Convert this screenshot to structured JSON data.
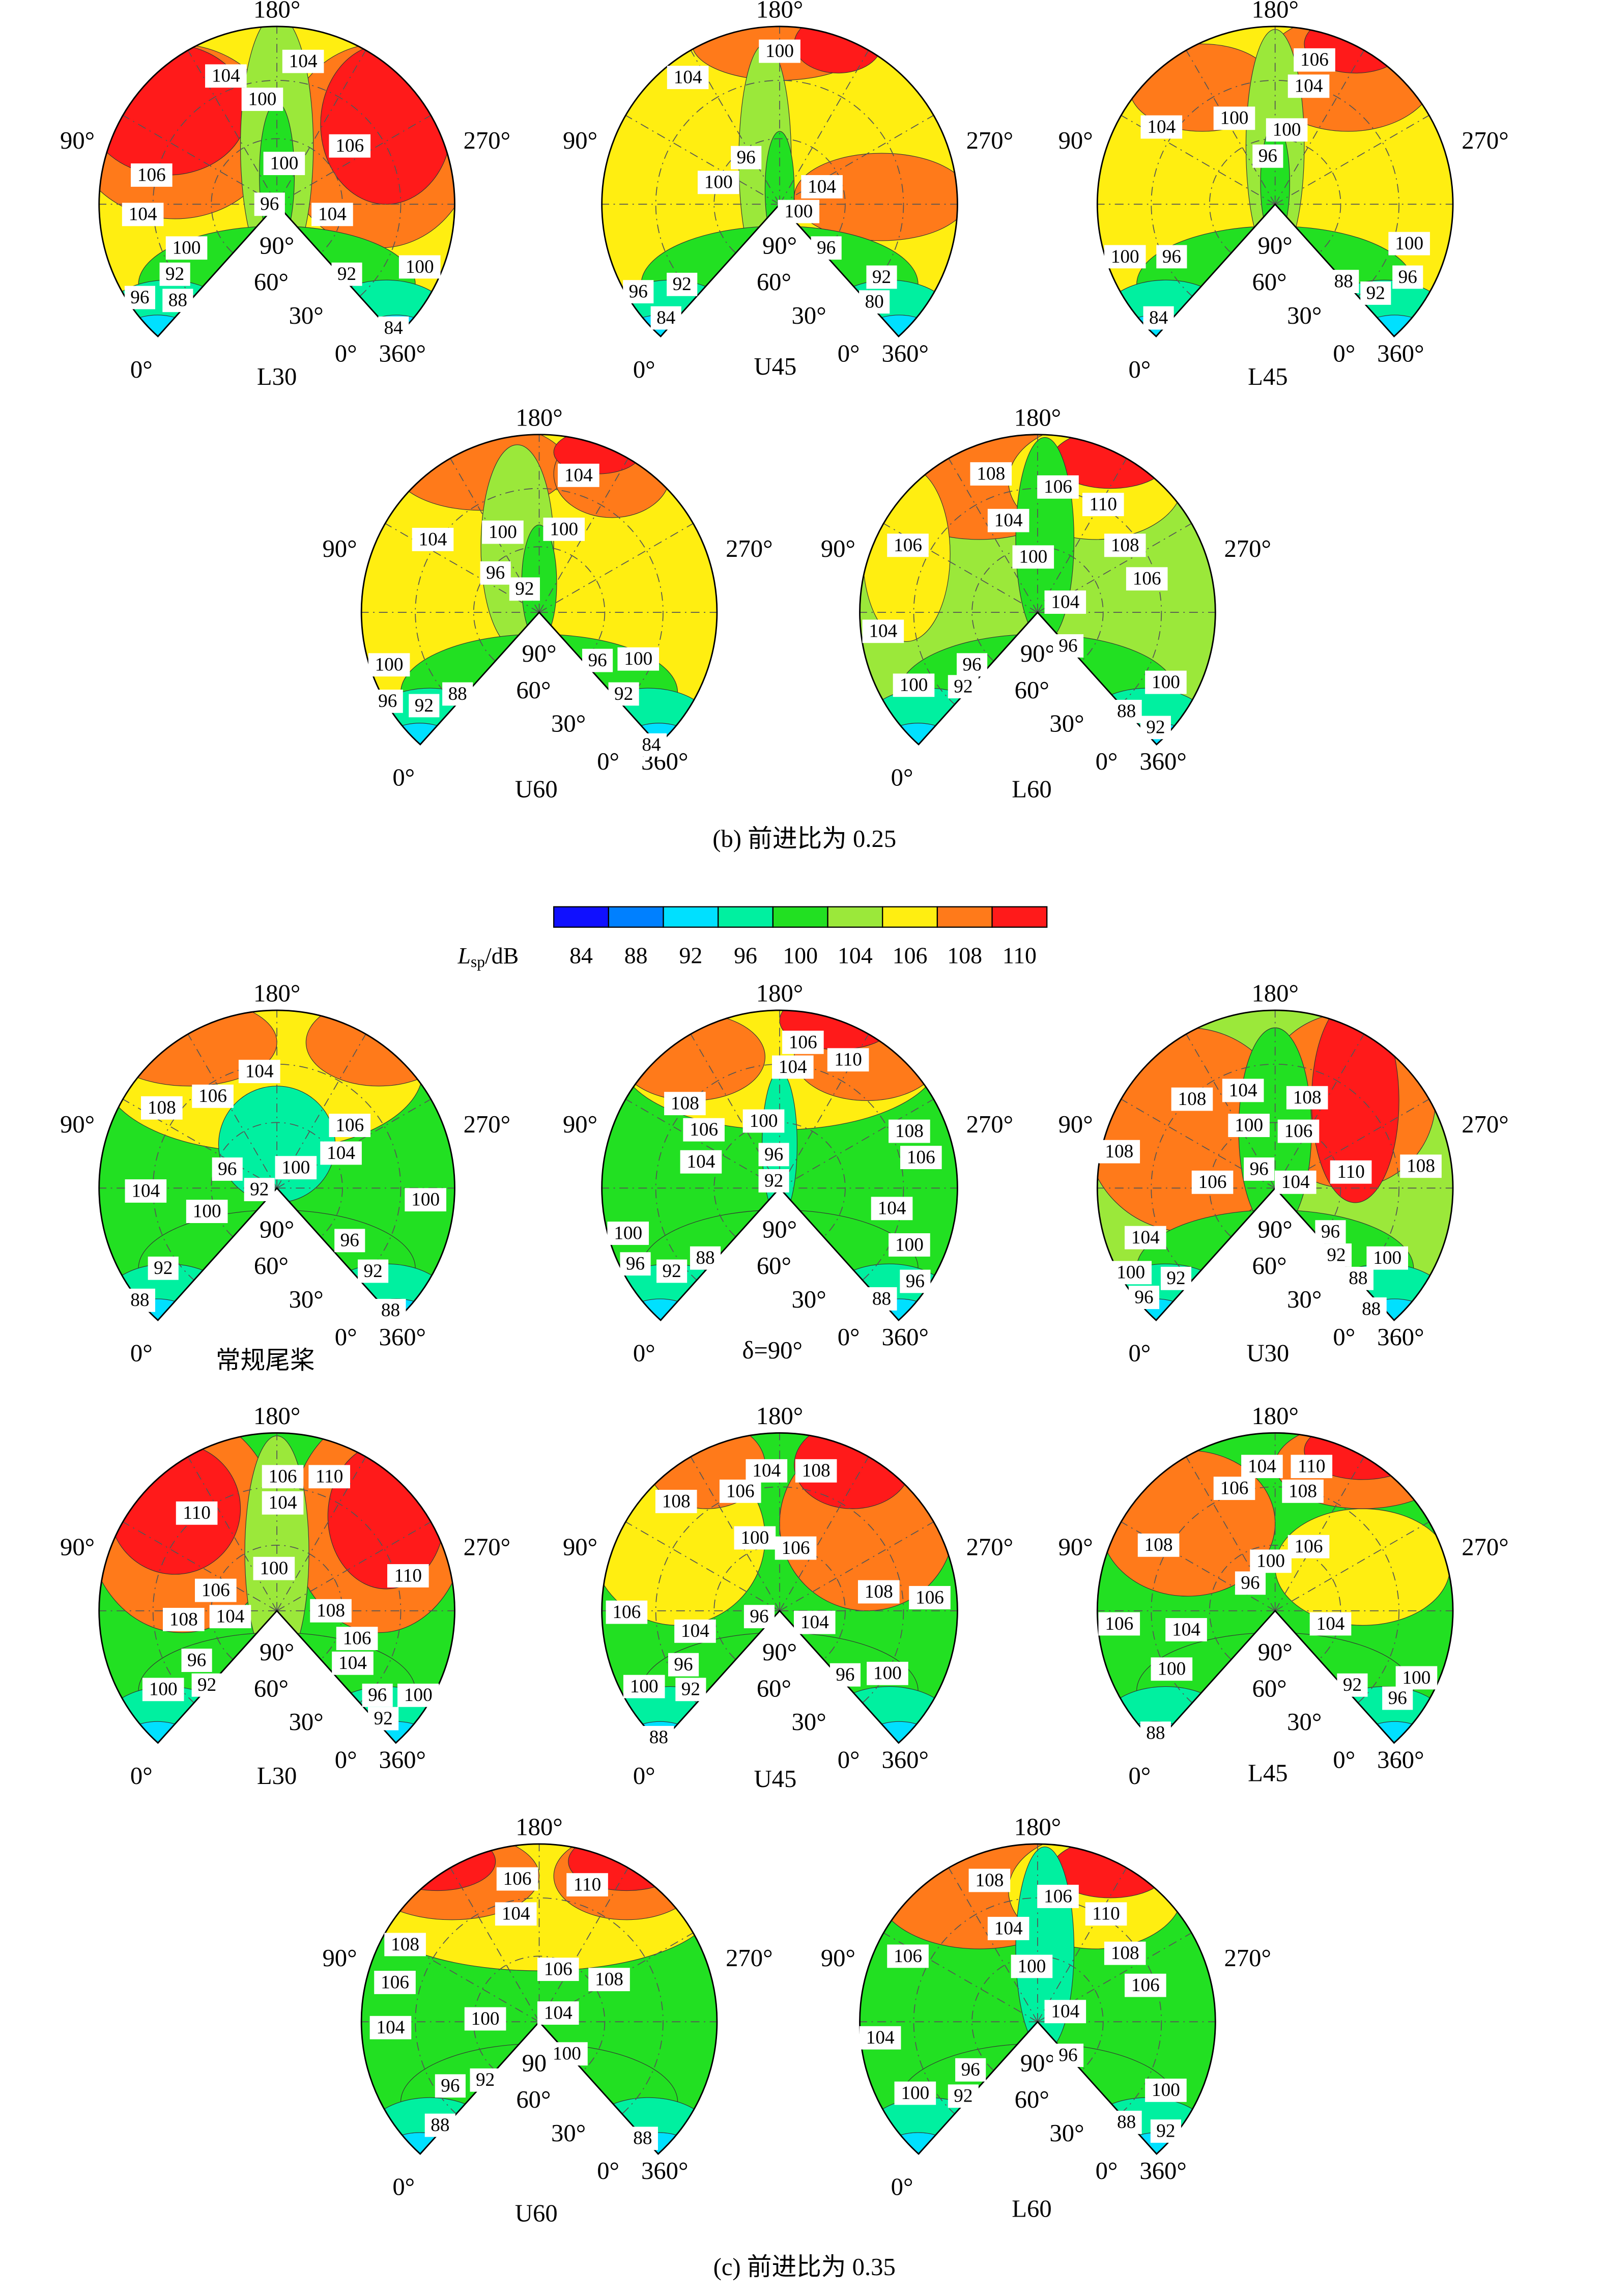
{
  "chart_data": {
    "type": "contour",
    "angle_labels": {
      "top": "180°",
      "left": "90°",
      "right": "270°",
      "inner_90": "90°",
      "inner_60": "60°",
      "inner_30": "30°",
      "zero_right": "0°",
      "end": "360°",
      "zero_left": "0°"
    },
    "colorbar": {
      "label_symbol": "L",
      "label_subscript": "sp",
      "label_unit": "/dB",
      "levels": [
        84,
        88,
        92,
        96,
        100,
        104,
        106,
        108,
        110
      ],
      "colors": [
        "#1010ff",
        "#0080ff",
        "#00e0ff",
        "#00f0a0",
        "#22e022",
        "#9be83a",
        "#ffee11",
        "#ff7a1a",
        "#ff1a1a"
      ]
    },
    "groups": [
      {
        "caption": "(b) 前进比为 0.25",
        "panels": [
          {
            "name": "L30",
            "contour_labels": [
              104,
              104,
              100,
              106,
              100,
              106,
              96,
              104,
              104,
              100,
              100,
              92,
              92,
              96,
              88,
              84
            ]
          },
          {
            "name": "U45",
            "contour_labels": [
              100,
              104,
              96,
              100,
              104,
              100,
              96,
              92,
              92,
              96,
              84,
              80
            ]
          },
          {
            "name": "L45",
            "contour_labels": [
              106,
              104,
              104,
              100,
              100,
              96,
              100,
              100,
              96,
              96,
              88,
              92,
              84
            ]
          },
          {
            "name": "U60",
            "contour_labels": [
              104,
              100,
              100,
              104,
              96,
              92,
              100,
              96,
              100,
              96,
              92,
              88,
              92,
              84
            ]
          },
          {
            "name": "L60",
            "contour_labels": [
              108,
              106,
              110,
              104,
              106,
              108,
              100,
              106,
              104,
              96,
              104,
              96,
              100,
              92,
              100,
              88,
              92
            ]
          }
        ]
      },
      {
        "caption": "(c) 前进比为 0.35",
        "panels": [
          {
            "name": "常规尾桨",
            "contour_labels": [
              104,
              106,
              108,
              106,
              104,
              96,
              100,
              92,
              104,
              100,
              100,
              96,
              92,
              92,
              88,
              88
            ]
          },
          {
            "name": "δ=90°",
            "contour_labels": [
              106,
              110,
              104,
              108,
              106,
              100,
              108,
              106,
              104,
              96,
              92,
              104,
              100,
              100,
              96,
              92,
              88,
              96,
              88
            ]
          },
          {
            "name": "U30",
            "contour_labels": [
              104,
              108,
              108,
              100,
              106,
              108,
              96,
              104,
              110,
              108,
              106,
              104,
              96,
              92,
              100,
              100,
              92,
              88,
              96,
              88
            ]
          },
          {
            "name": "L30",
            "contour_labels": [
              106,
              110,
              104,
              110,
              100,
              110,
              106,
              108,
              104,
              108,
              106,
              104,
              96,
              92,
              100,
              96,
              100,
              92
            ]
          },
          {
            "name": "U45",
            "contour_labels": [
              104,
              108,
              106,
              108,
              100,
              106,
              108,
              106,
              106,
              104,
              96,
              104,
              96,
              92,
              100,
              96,
              100,
              88
            ]
          },
          {
            "name": "L45",
            "contour_labels": [
              104,
              110,
              106,
              108,
              108,
              106,
              100,
              96,
              106,
              104,
              104,
              100,
              92,
              100,
              96,
              88
            ]
          },
          {
            "name": "U60",
            "contour_labels": [
              106,
              110,
              104,
              108,
              106,
              106,
              108,
              104,
              100,
              104,
              100,
              96,
              92,
              88,
              88
            ]
          },
          {
            "name": "L60",
            "contour_labels": [
              108,
              106,
              110,
              104,
              106,
              108,
              100,
              106,
              104,
              104,
              96,
              96,
              100,
              92,
              100,
              88,
              92
            ]
          }
        ]
      }
    ]
  }
}
